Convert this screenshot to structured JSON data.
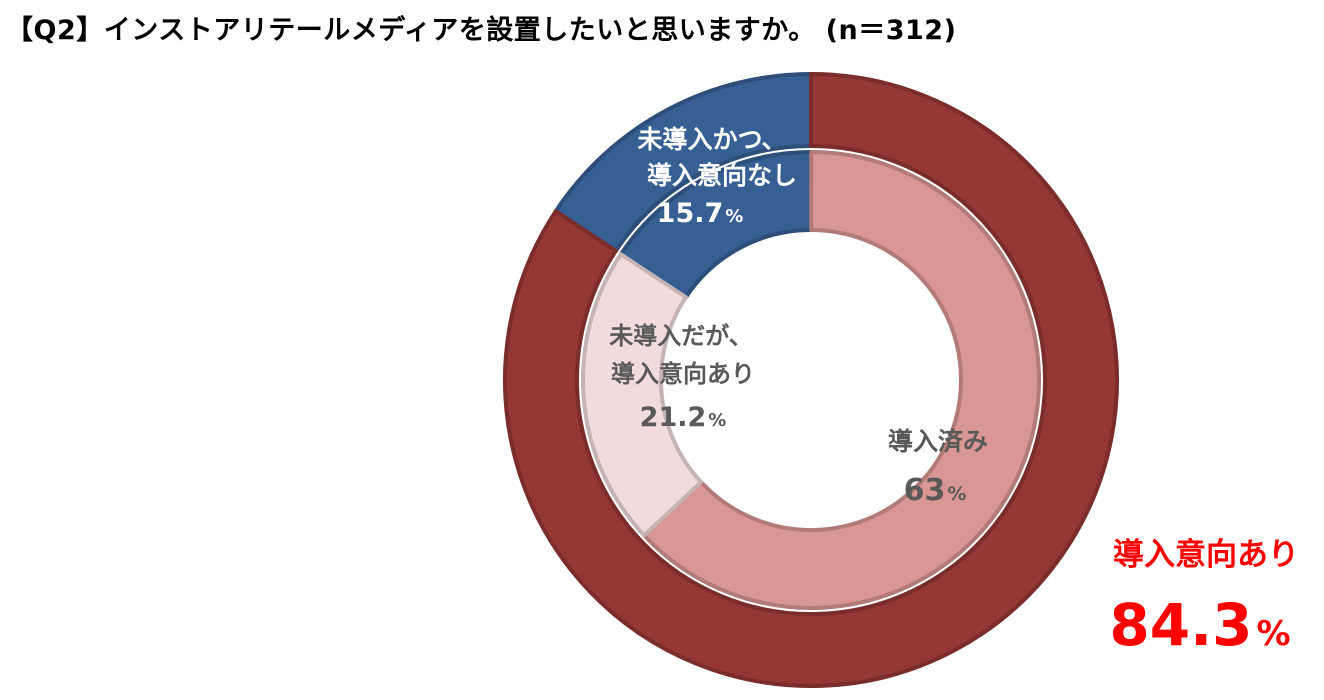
{
  "title": "【Q2】インストアリテールメディアを設置したいと思いますか。 (n＝312)",
  "chart_data": {
    "type": "donut",
    "outer_ring": [
      {
        "label": "未導入かつ、導入意向なし",
        "value": 15.7,
        "unit": "%",
        "color": "#365f93"
      },
      {
        "label": "導入意向あり",
        "value": 84.3,
        "unit": "%",
        "color": "#953735"
      }
    ],
    "inner_ring": [
      {
        "label": "未導入かつ、導入意向なし",
        "value": 15.7,
        "unit": "%",
        "color": "#365f93"
      },
      {
        "label": "導入済み",
        "value": 63,
        "unit": "%",
        "color": "#d99694"
      },
      {
        "label": "未導入だが、導入意向あり",
        "value": 21.2,
        "unit": "%",
        "color": "#f2dcdb"
      }
    ]
  },
  "labels": {
    "no_intent": {
      "line1": "未導入かつ、",
      "line2": "導入意向なし",
      "value": "15.7",
      "unit": "%"
    },
    "has_intent_not_introduced": {
      "line1": "未導入だが、",
      "line2": "導入意向あり",
      "value": "21.2",
      "unit": "%"
    },
    "introduced": {
      "line1": "導入済み",
      "value": "63",
      "unit": "%"
    },
    "intent_total": {
      "line1": "導入意向あり",
      "value": "84.3",
      "unit": "%"
    }
  }
}
